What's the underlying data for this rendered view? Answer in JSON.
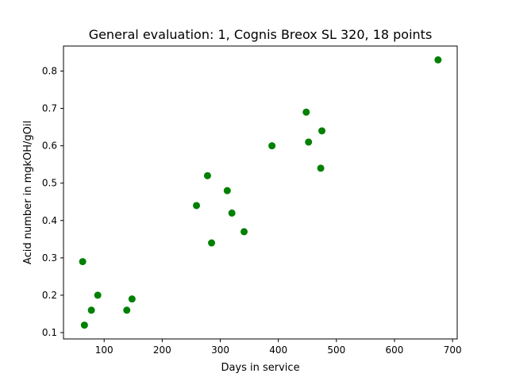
{
  "chart_data": {
    "type": "scatter",
    "title": "General evaluation: 1, Cognis Breox SL 320, 18 points",
    "xlabel": "Days in service",
    "ylabel": "Acid number in mgkOH/gOil",
    "xlim": [
      30,
      708
    ],
    "ylim": [
      0.083,
      0.867
    ],
    "xticks": [
      100,
      200,
      300,
      400,
      500,
      600,
      700
    ],
    "yticks": [
      0.1,
      0.2,
      0.3,
      0.4,
      0.5,
      0.6,
      0.7,
      0.8
    ],
    "grid": false,
    "marker_color": "#008000",
    "points": [
      {
        "x": 63,
        "y": 0.29
      },
      {
        "x": 66,
        "y": 0.12
      },
      {
        "x": 78,
        "y": 0.16
      },
      {
        "x": 89,
        "y": 0.2
      },
      {
        "x": 139,
        "y": 0.16
      },
      {
        "x": 148,
        "y": 0.19
      },
      {
        "x": 259,
        "y": 0.44
      },
      {
        "x": 278,
        "y": 0.52
      },
      {
        "x": 285,
        "y": 0.34
      },
      {
        "x": 312,
        "y": 0.48
      },
      {
        "x": 320,
        "y": 0.42
      },
      {
        "x": 341,
        "y": 0.37
      },
      {
        "x": 389,
        "y": 0.6
      },
      {
        "x": 448,
        "y": 0.69
      },
      {
        "x": 452,
        "y": 0.61
      },
      {
        "x": 473,
        "y": 0.54
      },
      {
        "x": 475,
        "y": 0.64
      },
      {
        "x": 675,
        "y": 0.83
      }
    ]
  }
}
